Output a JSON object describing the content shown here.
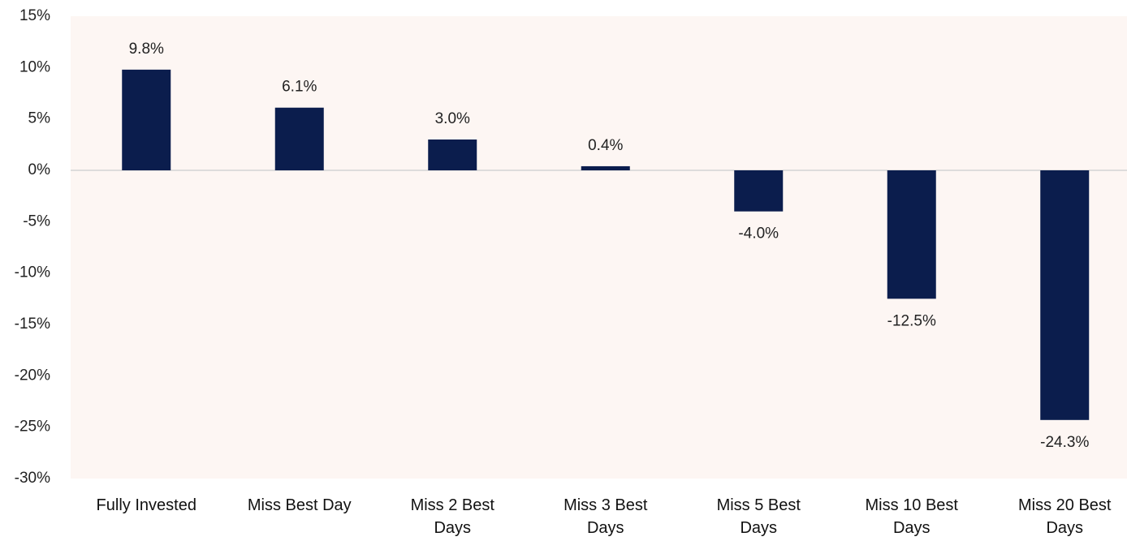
{
  "chart_data": {
    "type": "bar",
    "categories": [
      "Fully Invested",
      "Miss Best Day",
      "Miss 2 Best Days",
      "Miss 3 Best Days",
      "Miss 5 Best Days",
      "Miss 10 Best Days",
      "Miss 20 Best Days"
    ],
    "values": [
      9.8,
      6.1,
      3.0,
      0.4,
      -4.0,
      -12.5,
      -24.3
    ],
    "value_labels": [
      "9.8%",
      "6.1%",
      "3.0%",
      "0.4%",
      "-4.0%",
      "-12.5%",
      "-24.3%"
    ],
    "color": "#0b1d4d",
    "ylim": [
      -30,
      15
    ],
    "yticks": [
      {
        "value": -30,
        "label": "-30%"
      },
      {
        "value": -25,
        "label": "-25%"
      },
      {
        "value": -20,
        "label": "-20%"
      },
      {
        "value": -15,
        "label": "-15%"
      },
      {
        "value": -10,
        "label": "-10%"
      },
      {
        "value": -5,
        "label": "-5%"
      },
      {
        "value": 0,
        "label": "0%"
      },
      {
        "value": 5,
        "label": "5%"
      },
      {
        "value": 10,
        "label": "10%"
      },
      {
        "value": 15,
        "label": "15%"
      }
    ],
    "grid": false
  }
}
